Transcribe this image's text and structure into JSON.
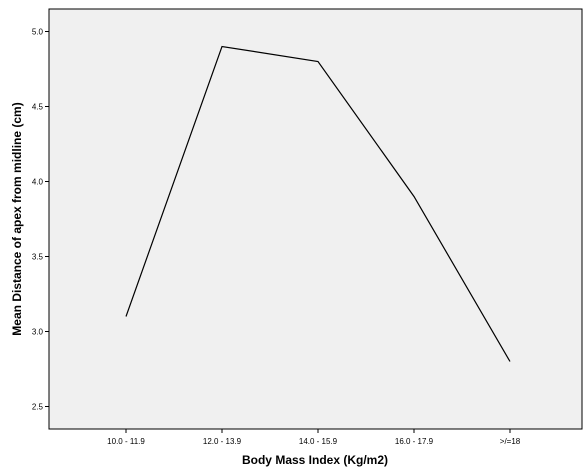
{
  "chart_data": {
    "type": "line",
    "title": "",
    "xlabel": "Body Mass Index (Kg/m2)",
    "ylabel": "Mean Distance of apex from midline (cm)",
    "categories": [
      "10.0 - 11.9",
      "12.0 - 13.9",
      "14.0 - 15.9",
      "16.0 - 17.9",
      ">/=18"
    ],
    "series": [
      {
        "values": [
          3.1,
          4.9,
          4.8,
          3.9,
          2.8
        ],
        "color": "#000000"
      }
    ],
    "ylim": [
      2.35,
      5.15
    ],
    "yticks": [
      2.5,
      3.0,
      3.5,
      4.0,
      4.5,
      5.0
    ],
    "ytick_labels": [
      "2.5",
      "3.0",
      "3.5",
      "4.0",
      "4.5",
      "5.0"
    ],
    "grid": false,
    "legend": "none"
  }
}
